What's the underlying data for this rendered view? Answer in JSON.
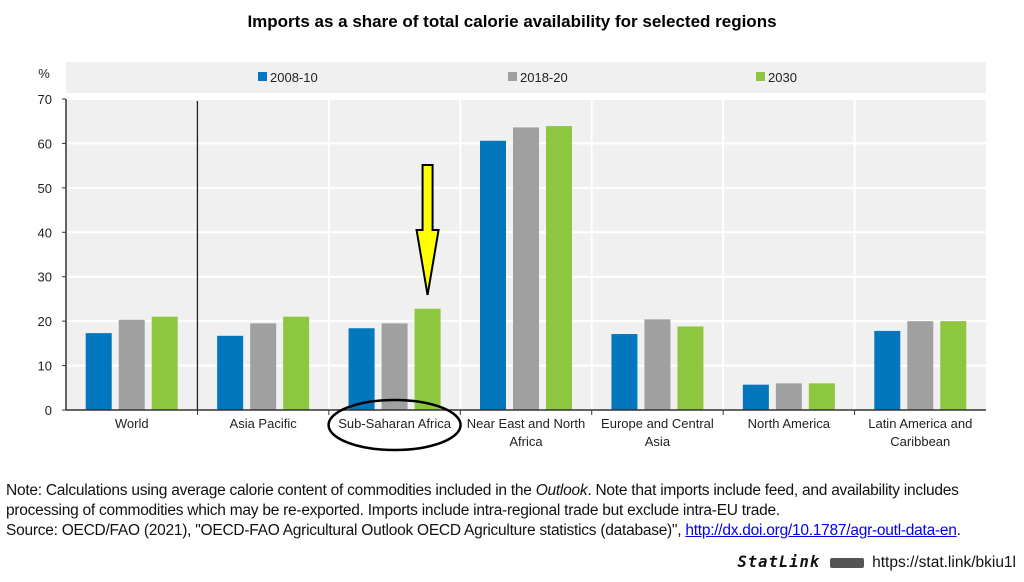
{
  "chart_data": {
    "type": "bar",
    "title": "Imports as a share of total calorie availability for selected regions",
    "ylabel": "%",
    "xlabel": "",
    "ylim": [
      0,
      70
    ],
    "yticks": [
      0,
      10,
      20,
      30,
      40,
      50,
      60,
      70
    ],
    "grid": true,
    "legend_position": "top",
    "categories": [
      [
        "World"
      ],
      [
        "Asia Pacific"
      ],
      [
        "Sub-Saharan Africa"
      ],
      [
        "Near East and North",
        "Africa"
      ],
      [
        "Europe and Central",
        "Asia"
      ],
      [
        "North America"
      ],
      [
        "Latin America and",
        "Caribbean"
      ]
    ],
    "series": [
      {
        "name": "2008-10",
        "color": "#0277bd",
        "values": [
          17.3,
          16.7,
          18.4,
          60.6,
          17.1,
          5.7,
          17.8
        ]
      },
      {
        "name": "2018-20",
        "color": "#a0a0a0",
        "values": [
          20.3,
          19.5,
          19.5,
          63.6,
          20.4,
          6.0,
          20.0
        ]
      },
      {
        "name": "2030",
        "color": "#8dc63f",
        "values": [
          21.0,
          21.0,
          22.8,
          63.9,
          18.8,
          6.0,
          20.0
        ]
      }
    ],
    "annotations": {
      "highlighted_category": "Sub-Saharan Africa",
      "arrow_color": "#ffff00"
    }
  },
  "notes": {
    "note_prefix": "Note: Calculations using average calorie content of commodities included in the ",
    "note_italic": "Outlook",
    "note_suffix": ". Note that imports include feed, and availability includes",
    "note_line2": "processing of commodities which may be re-exported. Imports include intra-regional trade but exclude intra-EU trade.",
    "source_prefix": "Source: OECD/FAO (2021), \"OECD-FAO Agricultural Outlook OECD Agriculture statistics (database)\", ",
    "source_link": "http://dx.doi.org/10.1787/agr-outl-data-en",
    "statlink_label": "StatLink",
    "statlink_url": "https://stat.link/bkiu1l"
  }
}
